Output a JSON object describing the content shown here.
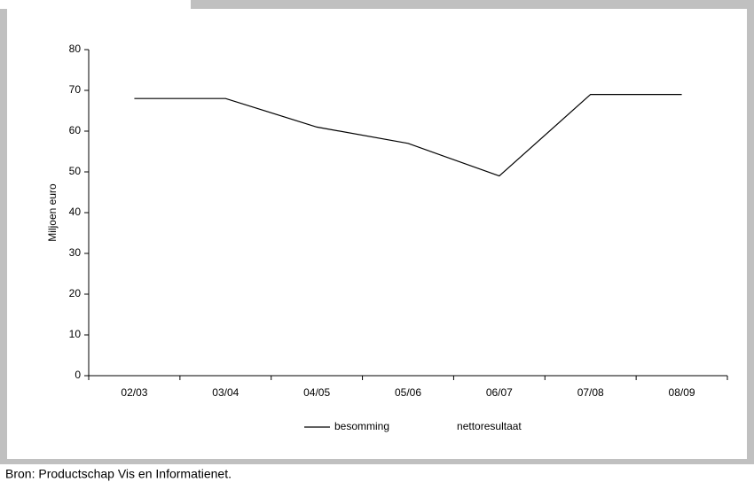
{
  "chart_data": {
    "type": "line",
    "y_label": "Miljoen euro",
    "categories": [
      "02/03",
      "03/04",
      "04/05",
      "05/06",
      "06/07",
      "07/08",
      "08/09"
    ],
    "series": [
      {
        "name": "besomming",
        "color": "#000000",
        "values": [
          68,
          68,
          61,
          57,
          49,
          69,
          69
        ]
      },
      {
        "name": "nettoresultaat",
        "values": [
          null,
          null,
          null,
          null,
          null,
          null,
          null
        ]
      }
    ],
    "ylim": [
      0,
      80
    ],
    "yticks": [
      0,
      10,
      20,
      30,
      40,
      50,
      60,
      70,
      80
    ],
    "grid": false
  },
  "source": "Bron: Productschap Vis en Informatienet."
}
